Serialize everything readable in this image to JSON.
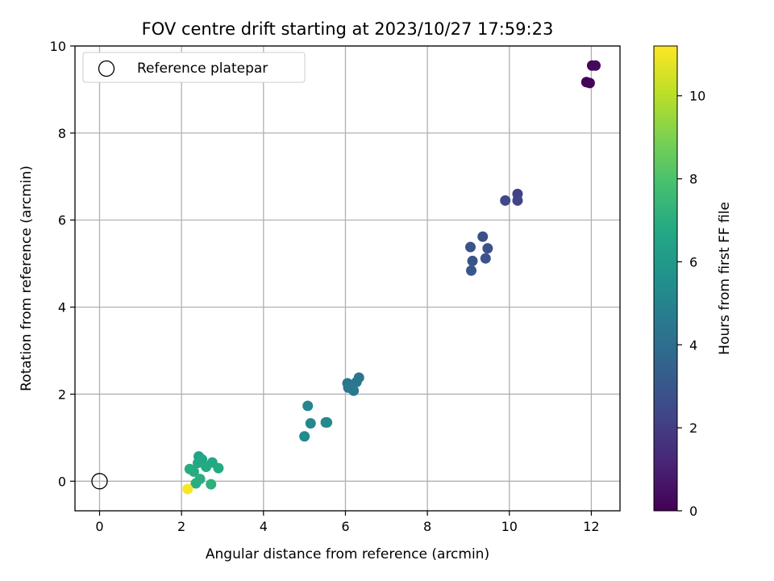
{
  "chart_data": {
    "type": "scatter",
    "title": "FOV centre drift starting at 2023/10/27 17:59:23",
    "xlabel": "Angular distance from reference (arcmin)",
    "ylabel": "Rotation from reference (arcmin)",
    "xlim": [
      -0.6,
      12.7
    ],
    "ylim": [
      -0.68,
      10.0
    ],
    "xticks": [
      0,
      2,
      4,
      6,
      8,
      10,
      12
    ],
    "yticks": [
      0,
      2,
      4,
      6,
      8,
      10
    ],
    "grid": true,
    "legend": {
      "position": "top-left",
      "entries": [
        "Reference platepar"
      ]
    },
    "reference_point": {
      "x": 0,
      "y": 0,
      "label": "Reference platepar"
    },
    "colorbar": {
      "label": "Hours from first FF file",
      "colormap": "viridis",
      "range": [
        0,
        11.2
      ],
      "ticks": [
        0,
        2,
        4,
        6,
        8,
        10
      ]
    },
    "points": [
      {
        "x": 11.88,
        "y": 9.17,
        "c": 0.0
      },
      {
        "x": 11.96,
        "y": 9.15,
        "c": 0.1
      },
      {
        "x": 12.02,
        "y": 9.55,
        "c": 0.2
      },
      {
        "x": 12.1,
        "y": 9.55,
        "c": 0.3
      },
      {
        "x": 10.2,
        "y": 6.6,
        "c": 2.2
      },
      {
        "x": 10.2,
        "y": 6.45,
        "c": 2.3
      },
      {
        "x": 9.9,
        "y": 6.45,
        "c": 2.4
      },
      {
        "x": 9.35,
        "y": 5.62,
        "c": 2.7
      },
      {
        "x": 9.05,
        "y": 5.38,
        "c": 2.8
      },
      {
        "x": 9.47,
        "y": 5.35,
        "c": 2.8
      },
      {
        "x": 9.1,
        "y": 5.06,
        "c": 2.9
      },
      {
        "x": 9.42,
        "y": 5.12,
        "c": 2.9
      },
      {
        "x": 9.07,
        "y": 4.84,
        "c": 3.0
      },
      {
        "x": 6.33,
        "y": 2.38,
        "c": 4.3
      },
      {
        "x": 6.27,
        "y": 2.28,
        "c": 4.4
      },
      {
        "x": 6.05,
        "y": 2.25,
        "c": 4.4
      },
      {
        "x": 6.07,
        "y": 2.15,
        "c": 4.5
      },
      {
        "x": 6.2,
        "y": 2.08,
        "c": 4.5
      },
      {
        "x": 5.08,
        "y": 1.73,
        "c": 5.1
      },
      {
        "x": 5.15,
        "y": 1.33,
        "c": 5.2
      },
      {
        "x": 5.52,
        "y": 1.35,
        "c": 5.2
      },
      {
        "x": 5.55,
        "y": 1.35,
        "c": 5.3
      },
      {
        "x": 5.0,
        "y": 1.03,
        "c": 5.3
      },
      {
        "x": 2.42,
        "y": 0.57,
        "c": 6.5
      },
      {
        "x": 2.5,
        "y": 0.5,
        "c": 6.6
      },
      {
        "x": 2.4,
        "y": 0.42,
        "c": 6.7
      },
      {
        "x": 2.75,
        "y": 0.43,
        "c": 6.7
      },
      {
        "x": 2.6,
        "y": 0.33,
        "c": 6.8
      },
      {
        "x": 2.9,
        "y": 0.3,
        "c": 6.8
      },
      {
        "x": 2.2,
        "y": 0.28,
        "c": 6.9
      },
      {
        "x": 2.3,
        "y": 0.22,
        "c": 6.9
      },
      {
        "x": 2.45,
        "y": 0.05,
        "c": 7.0
      },
      {
        "x": 2.35,
        "y": -0.05,
        "c": 7.0
      },
      {
        "x": 2.72,
        "y": -0.07,
        "c": 7.1
      },
      {
        "x": 2.15,
        "y": -0.18,
        "c": 11.1
      }
    ]
  }
}
